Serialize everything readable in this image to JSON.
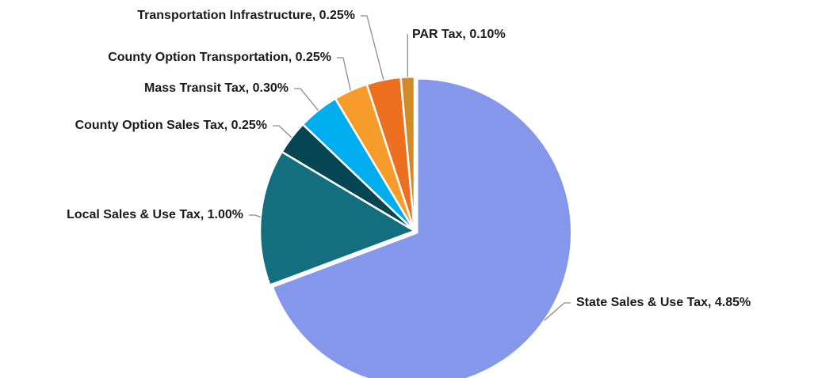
{
  "chart_data": {
    "type": "pie",
    "labels": [
      "State Sales & Use Tax, 4.85%",
      "Local Sales & Use Tax, 1.00%",
      "County Option Sales Tax, 0.25%",
      "Mass Transit Tax, 0.30%",
      "County Option Transportation, 0.25%",
      "Transportation Infrastructure, 0.25%",
      "PAR Tax, 0.10%"
    ],
    "values": [
      4.85,
      1.0,
      0.25,
      0.3,
      0.25,
      0.25,
      0.1
    ],
    "colors": [
      "#8497eb",
      "#136f7e",
      "#054652",
      "#00adef",
      "#f79c2a",
      "#ec7020",
      "#d38b28"
    ]
  }
}
